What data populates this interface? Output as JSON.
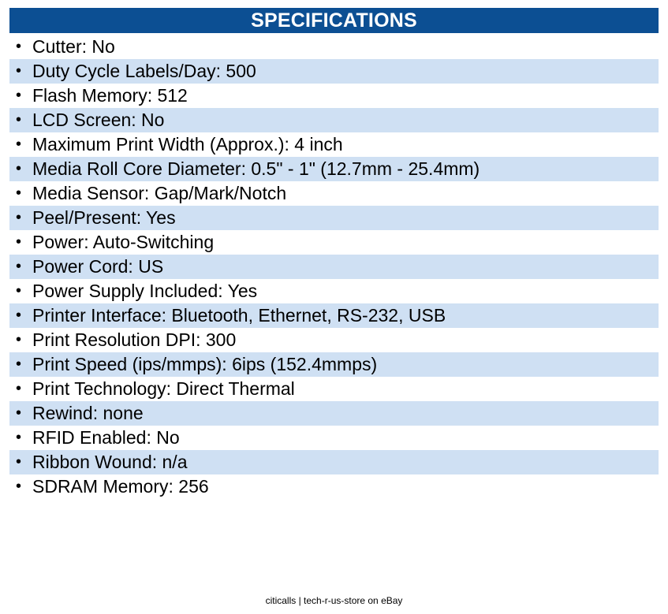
{
  "header": {
    "title": "SPECIFICATIONS"
  },
  "colors": {
    "header_bg": "#0c4f93",
    "row_alt_bg": "#cfe0f3"
  },
  "bullet": "•",
  "specs": [
    "Cutter: No",
    "Duty Cycle Labels/Day: 500",
    "Flash Memory: 512",
    "LCD Screen: No",
    "Maximum Print Width (Approx.): 4 inch",
    "Media Roll Core Diameter: 0.5\" - 1\" (12.7mm - 25.4mm)",
    "Media Sensor: Gap/Mark/Notch",
    "Peel/Present: Yes",
    "Power: Auto-Switching",
    "Power Cord: US",
    "Power Supply Included: Yes",
    "Printer Interface: Bluetooth, Ethernet, RS-232, USB",
    "Print Resolution DPI: 300",
    "Print Speed (ips/mmps): 6ips (152.4mmps)",
    "Print Technology: Direct Thermal",
    "Rewind: none",
    "RFID Enabled: No",
    "Ribbon Wound: n/a",
    "SDRAM Memory: 256"
  ],
  "footer": {
    "text": "citicalls | tech-r-us-store on eBay"
  }
}
